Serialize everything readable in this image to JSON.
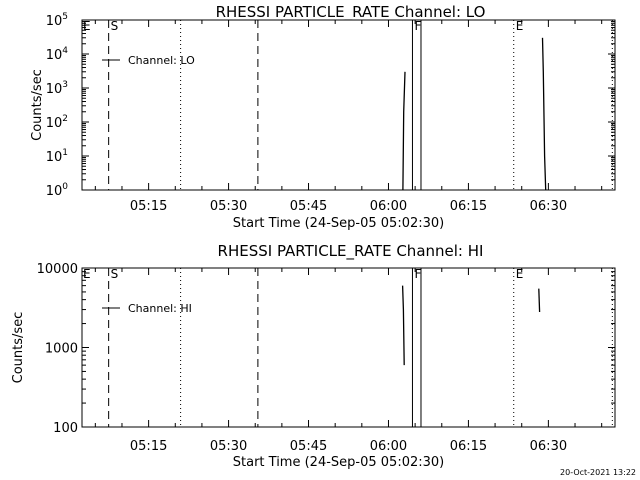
{
  "chart_data": [
    {
      "type": "line",
      "title": "RHESSI PARTICLE_RATE Channel: LO",
      "xlabel": "Start Time (24-Sep-05 05:02:30)",
      "ylabel": "Counts/sec",
      "yscale": "log",
      "ylim": [
        1,
        100000
      ],
      "xlim_minutes": [
        0,
        100
      ],
      "y_ticks": [
        {
          "value": 1,
          "base": "10",
          "exp": "0"
        },
        {
          "value": 10,
          "base": "10",
          "exp": "1"
        },
        {
          "value": 100,
          "base": "10",
          "exp": "2"
        },
        {
          "value": 1000,
          "base": "10",
          "exp": "3"
        },
        {
          "value": 10000,
          "base": "10",
          "exp": "4"
        },
        {
          "value": 100000,
          "base": "10",
          "exp": "5"
        }
      ],
      "x_ticks": [
        {
          "t": 12.5,
          "label": "05:15"
        },
        {
          "t": 27.5,
          "label": "05:30"
        },
        {
          "t": 42.5,
          "label": "05:45"
        },
        {
          "t": 57.5,
          "label": "06:00"
        },
        {
          "t": 72.5,
          "label": "06:15"
        },
        {
          "t": 87.5,
          "label": "06:30"
        }
      ],
      "markers": [
        {
          "t": 5.0,
          "style": "dashed",
          "label": "S"
        },
        {
          "t": 18.5,
          "style": "dotted",
          "label": ""
        },
        {
          "t": 33.0,
          "style": "dashed",
          "label": ""
        },
        {
          "t": 62.0,
          "style": "solid",
          "label": "F"
        },
        {
          "t": 63.6,
          "style": "solid",
          "label": ""
        },
        {
          "t": 81.0,
          "style": "dotted",
          "label": "E"
        },
        {
          "t": 99.5,
          "style": "dotted",
          "label": ""
        }
      ],
      "corner_label": "E",
      "series": [
        {
          "name": "Channel: LO",
          "segments": [
            [
              {
                "x": 60.2,
                "y": 1
              },
              {
                "x": 60.35,
                "y": 200
              },
              {
                "x": 60.6,
                "y": 3000
              }
            ],
            [
              {
                "x": 86.4,
                "y": 30000
              },
              {
                "x": 86.55,
                "y": 3000
              },
              {
                "x": 86.8,
                "y": 10
              },
              {
                "x": 87.0,
                "y": 1
              }
            ]
          ]
        }
      ]
    },
    {
      "type": "line",
      "title": "RHESSI PARTICLE_RATE Channel: HI",
      "xlabel": "Start Time (24-Sep-05 05:02:30)",
      "ylabel": "Counts/sec",
      "yscale": "log",
      "ylim": [
        100,
        10000
      ],
      "xlim_minutes": [
        0,
        100
      ],
      "y_ticks": [
        {
          "value": 100,
          "label": "100"
        },
        {
          "value": 1000,
          "label": "1000"
        },
        {
          "value": 10000,
          "label": "10000"
        }
      ],
      "x_ticks": [
        {
          "t": 12.5,
          "label": "05:15"
        },
        {
          "t": 27.5,
          "label": "05:30"
        },
        {
          "t": 42.5,
          "label": "05:45"
        },
        {
          "t": 57.5,
          "label": "06:00"
        },
        {
          "t": 72.5,
          "label": "06:15"
        },
        {
          "t": 87.5,
          "label": "06:30"
        }
      ],
      "markers": [
        {
          "t": 5.0,
          "style": "dashed",
          "label": "S"
        },
        {
          "t": 18.5,
          "style": "dotted",
          "label": ""
        },
        {
          "t": 33.0,
          "style": "dashed",
          "label": ""
        },
        {
          "t": 62.0,
          "style": "solid",
          "label": "F"
        },
        {
          "t": 63.6,
          "style": "solid",
          "label": ""
        },
        {
          "t": 81.0,
          "style": "dotted",
          "label": "E"
        },
        {
          "t": 99.5,
          "style": "dotted",
          "label": ""
        }
      ],
      "corner_label": "E",
      "series": [
        {
          "name": "Channel: HI",
          "segments": [
            [
              {
                "x": 60.15,
                "y": 6000
              },
              {
                "x": 60.3,
                "y": 3000
              },
              {
                "x": 60.45,
                "y": 600
              }
            ],
            [
              {
                "x": 85.7,
                "y": 5500
              },
              {
                "x": 85.85,
                "y": 2800
              }
            ]
          ]
        }
      ]
    }
  ],
  "timestamp": "20-Oct-2021 13:22"
}
